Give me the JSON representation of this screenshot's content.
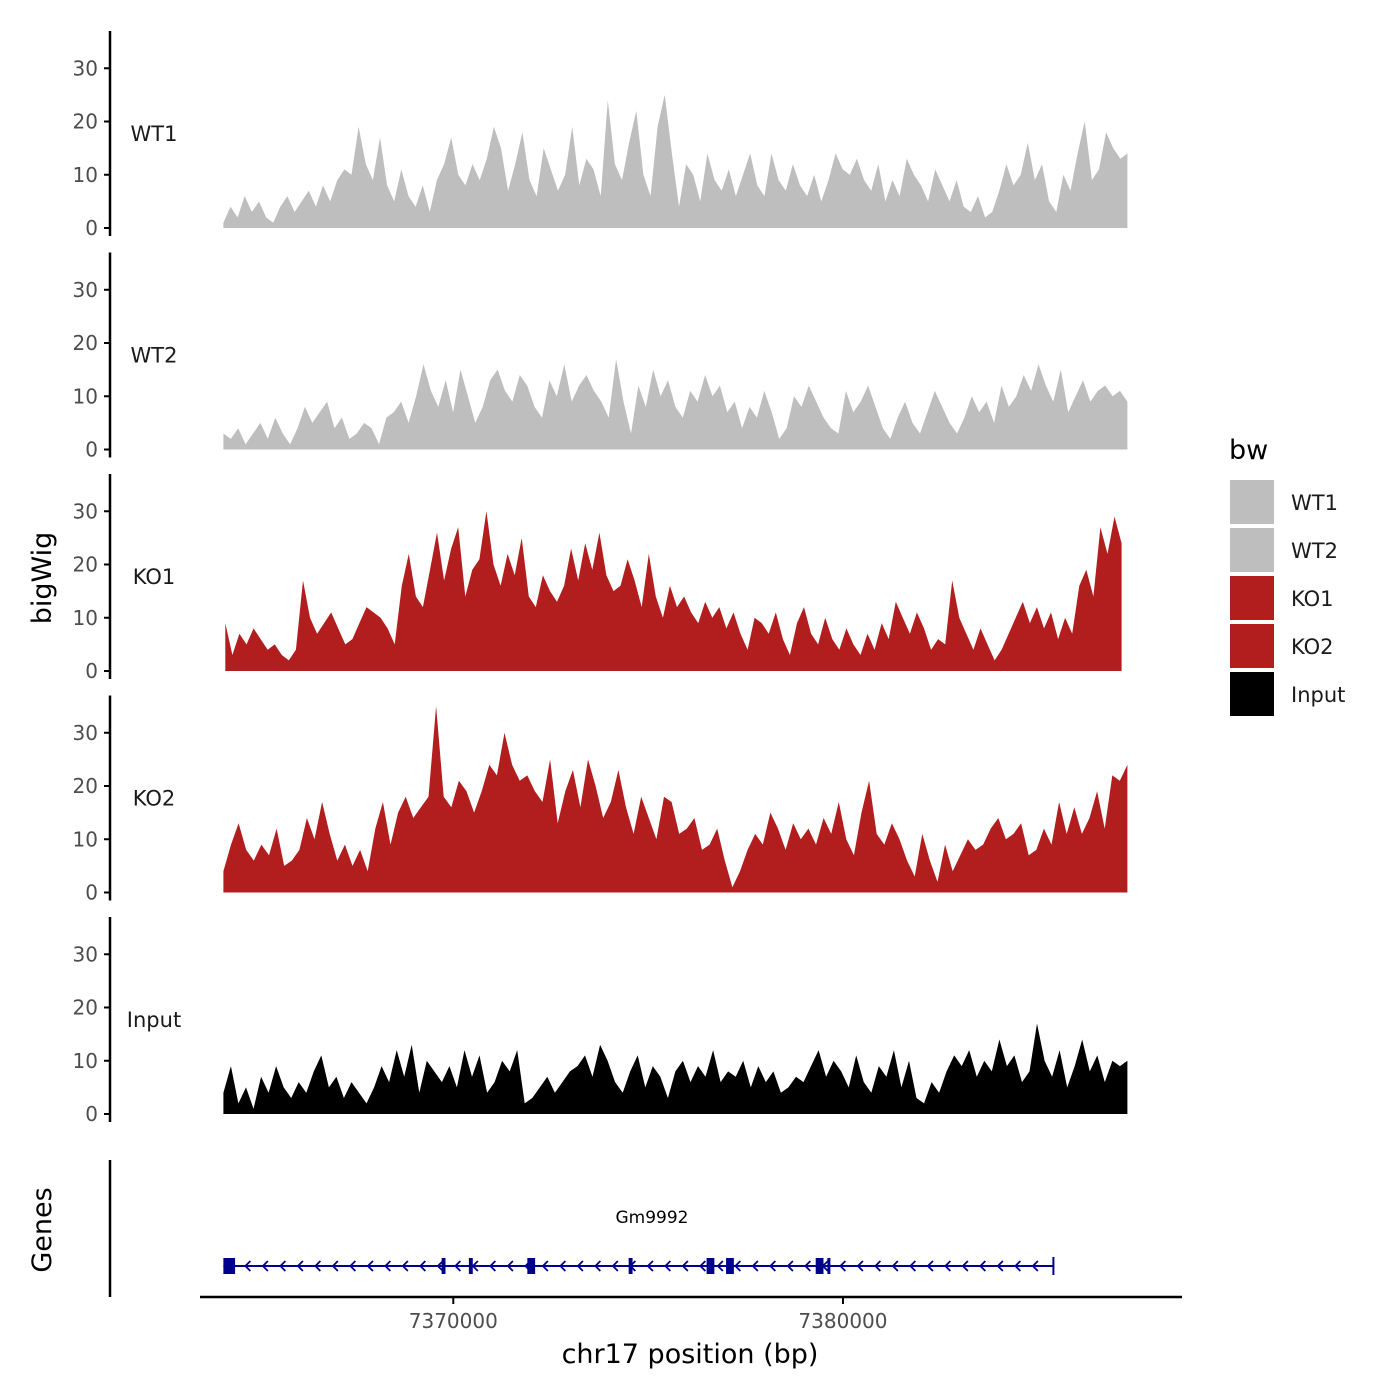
{
  "chart_data": {
    "type": "area",
    "chromosome": "chr17",
    "x_range_bp": [
      7363500,
      7388700
    ],
    "x_axis": {
      "label": "chr17 position (bp)",
      "ticks": [
        7370000,
        7380000
      ],
      "tick_labels": [
        "7370000",
        "7380000"
      ]
    },
    "y_axis": {
      "label": "bigWig",
      "ylim": [
        0,
        37
      ],
      "ticks": [
        0,
        10,
        20,
        30
      ],
      "tick_labels": [
        "0",
        "10",
        "20",
        "30"
      ]
    },
    "legend": {
      "title": "bw",
      "position": "right",
      "entries": [
        {
          "label": "WT1",
          "color": "#bebebe"
        },
        {
          "label": "WT2",
          "color": "#bebebe"
        },
        {
          "label": "KO1",
          "color": "#b21e1e"
        },
        {
          "label": "KO2",
          "color": "#b21e1e"
        },
        {
          "label": "Input",
          "color": "#000000"
        }
      ]
    },
    "series": [
      {
        "name": "WT1",
        "color": "#bebebe",
        "start": 7364100,
        "end": 7387300,
        "values": [
          1,
          4,
          2,
          6,
          3,
          5,
          2,
          1,
          4,
          6,
          3,
          5,
          7,
          4,
          8,
          5,
          9,
          11,
          10,
          19,
          12,
          9,
          17,
          8,
          5,
          11,
          6,
          4,
          8,
          3,
          9,
          12,
          17,
          10,
          8,
          12,
          9,
          13,
          19,
          15,
          7,
          12,
          18,
          9,
          6,
          15,
          11,
          7,
          10,
          19,
          8,
          13,
          11,
          6,
          24,
          12,
          9,
          16,
          22,
          10,
          6,
          19,
          25,
          14,
          4,
          12,
          10,
          5,
          14,
          9,
          7,
          11,
          6,
          10,
          14,
          8,
          6,
          14,
          9,
          7,
          12,
          8,
          6,
          10,
          5,
          9,
          14,
          11,
          10,
          13,
          9,
          7,
          12,
          5,
          9,
          6,
          13,
          10,
          8,
          5,
          11,
          8,
          5,
          9,
          4,
          3,
          6,
          2,
          3,
          7,
          12,
          8,
          10,
          16,
          9,
          12,
          5,
          3,
          10,
          7,
          14,
          20,
          9,
          11,
          18,
          15,
          13,
          14
        ]
      },
      {
        "name": "WT2",
        "color": "#bebebe",
        "start": 7364100,
        "end": 7387300,
        "values": [
          3,
          2,
          4,
          1,
          3,
          5,
          2,
          6,
          3,
          1,
          4,
          8,
          5,
          7,
          9,
          4,
          6,
          2,
          3,
          5,
          4,
          1,
          6,
          7,
          9,
          5,
          10,
          16,
          11,
          8,
          13,
          7,
          15,
          10,
          5,
          8,
          13,
          15,
          11,
          9,
          14,
          12,
          8,
          6,
          13,
          10,
          16,
          9,
          12,
          14,
          11,
          9,
          6,
          17,
          9,
          3,
          12,
          8,
          15,
          10,
          13,
          8,
          6,
          11,
          9,
          14,
          10,
          12,
          7,
          9,
          4,
          8,
          6,
          11,
          7,
          2,
          4,
          10,
          8,
          12,
          9,
          6,
          4,
          3,
          11,
          7,
          9,
          12,
          8,
          4,
          2,
          6,
          9,
          5,
          3,
          7,
          11,
          8,
          5,
          3,
          6,
          10,
          7,
          9,
          5,
          12,
          8,
          10,
          14,
          11,
          16,
          12,
          9,
          15,
          7,
          10,
          13,
          9,
          11,
          12,
          10,
          11,
          9
        ]
      },
      {
        "name": "KO1",
        "color": "#b21e1e",
        "start": 7364150,
        "end": 7387150,
        "values": [
          9,
          3,
          7,
          5,
          8,
          6,
          4,
          5,
          3,
          2,
          4,
          17,
          10,
          7,
          9,
          11,
          8,
          5,
          6,
          9,
          12,
          11,
          10,
          8,
          5,
          16,
          22,
          14,
          12,
          19,
          26,
          17,
          23,
          27,
          14,
          19,
          21,
          30,
          20,
          16,
          22,
          18,
          25,
          14,
          12,
          18,
          15,
          13,
          16,
          23,
          17,
          24,
          19,
          26,
          18,
          15,
          16,
          21,
          17,
          12,
          22,
          14,
          10,
          16,
          12,
          14,
          11,
          9,
          13,
          10,
          12,
          8,
          11,
          7,
          4,
          10,
          9,
          7,
          11,
          6,
          3,
          9,
          12,
          7,
          5,
          10,
          6,
          4,
          8,
          5,
          3,
          7,
          4,
          9,
          6,
          13,
          10,
          7,
          11,
          8,
          4,
          6,
          5,
          17,
          10,
          7,
          4,
          8,
          5,
          2,
          4,
          7,
          10,
          13,
          9,
          12,
          8,
          11,
          6,
          10,
          7,
          16,
          19,
          14,
          27,
          22,
          29,
          24
        ]
      },
      {
        "name": "KO2",
        "color": "#b21e1e",
        "start": 7364100,
        "end": 7387300,
        "values": [
          4,
          9,
          13,
          8,
          6,
          9,
          7,
          12,
          5,
          6,
          8,
          14,
          10,
          17,
          11,
          6,
          9,
          5,
          8,
          4,
          12,
          17,
          9,
          15,
          18,
          14,
          16,
          18,
          35,
          18,
          16,
          21,
          19,
          15,
          19,
          24,
          22,
          30,
          24,
          21,
          22,
          19,
          17,
          25,
          13,
          19,
          23,
          16,
          25,
          20,
          14,
          17,
          23,
          16,
          11,
          18,
          14,
          10,
          18,
          17,
          11,
          12,
          14,
          8,
          9,
          12,
          6,
          1,
          4,
          8,
          11,
          9,
          15,
          12,
          8,
          13,
          10,
          12,
          9,
          14,
          11,
          17,
          10,
          7,
          15,
          21,
          11,
          9,
          13,
          10,
          6,
          3,
          11,
          6,
          2,
          9,
          4,
          7,
          10,
          8,
          9,
          12,
          14,
          10,
          11,
          13,
          7,
          8,
          12,
          9,
          17,
          11,
          16,
          11,
          14,
          19,
          12,
          22,
          21,
          24
        ]
      },
      {
        "name": "Input",
        "color": "#000000",
        "start": 7364100,
        "end": 7387300,
        "values": [
          4,
          9,
          2,
          5,
          1,
          7,
          4,
          9,
          5,
          3,
          6,
          4,
          8,
          11,
          5,
          7,
          3,
          6,
          4,
          2,
          5,
          9,
          6,
          12,
          7,
          13,
          4,
          10,
          8,
          6,
          9,
          5,
          12,
          7,
          11,
          4,
          6,
          10,
          8,
          12,
          2,
          3,
          5,
          7,
          4,
          6,
          8,
          9,
          11,
          7,
          13,
          10,
          6,
          4,
          8,
          11,
          5,
          9,
          7,
          3,
          8,
          10,
          6,
          9,
          7,
          12,
          6,
          8,
          7,
          10,
          5,
          9,
          6,
          8,
          4,
          5,
          7,
          6,
          9,
          12,
          7,
          10,
          8,
          5,
          11,
          6,
          4,
          9,
          7,
          12,
          5,
          10,
          3,
          2,
          6,
          4,
          8,
          11,
          9,
          12,
          7,
          10,
          8,
          14,
          9,
          11,
          6,
          8,
          17,
          10,
          7,
          12,
          5,
          9,
          14,
          8,
          11,
          6,
          10,
          9,
          10
        ]
      }
    ],
    "genes_track": {
      "label": "Genes",
      "genes": [
        {
          "name": "Gm9992",
          "strand": "-",
          "start": 7364100,
          "end": 7385400,
          "exons": [
            [
              7364100,
              7364400
            ],
            [
              7369700,
              7369800
            ],
            [
              7370400,
              7370500
            ],
            [
              7371900,
              7372100
            ],
            [
              7374500,
              7374600
            ],
            [
              7376500,
              7376700
            ],
            [
              7377000,
              7377200
            ],
            [
              7379300,
              7379500
            ],
            [
              7379600,
              7379650
            ]
          ]
        }
      ]
    }
  }
}
